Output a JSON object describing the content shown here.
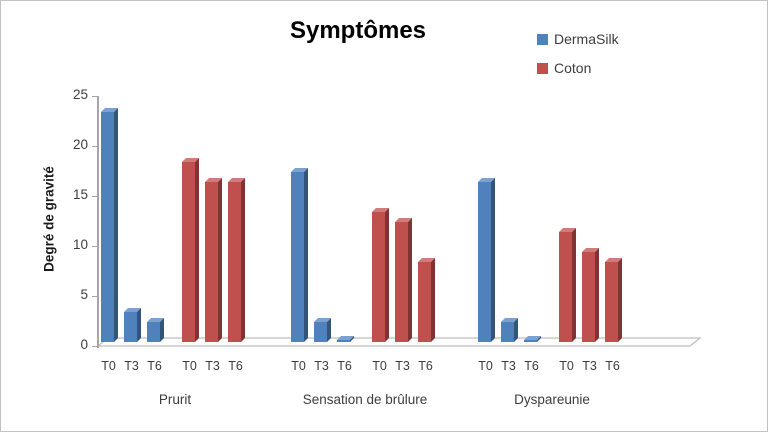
{
  "chart_data": {
    "type": "bar",
    "style": "3d-clustered-column",
    "title": "Symptômes",
    "ylabel": "Degré de gravité",
    "xlabel": "",
    "ylim": [
      0,
      25
    ],
    "yticks": [
      0,
      5,
      10,
      15,
      20,
      25
    ],
    "legend_position": "top-right",
    "legend": [
      {
        "name": "DermaSilk",
        "color": "#4f81bd"
      },
      {
        "name": "Coton",
        "color": "#c0504d"
      }
    ],
    "categories": [
      "T0",
      "T3",
      "T6"
    ],
    "groups": [
      {
        "label": "Prurit",
        "series": [
          {
            "name": "DermaSilk",
            "values": [
              23,
              3,
              2
            ]
          },
          {
            "name": "Coton",
            "values": [
              18,
              16,
              16
            ]
          }
        ]
      },
      {
        "label": "Sensation de brûlure",
        "series": [
          {
            "name": "DermaSilk",
            "values": [
              17,
              2,
              0.2
            ]
          },
          {
            "name": "Coton",
            "values": [
              13,
              12,
              8
            ]
          }
        ]
      },
      {
        "label": "Dyspareunie",
        "series": [
          {
            "name": "DermaSilk",
            "values": [
              16,
              2,
              0.2
            ]
          },
          {
            "name": "Coton",
            "values": [
              11,
              9,
              8
            ]
          }
        ]
      }
    ]
  }
}
